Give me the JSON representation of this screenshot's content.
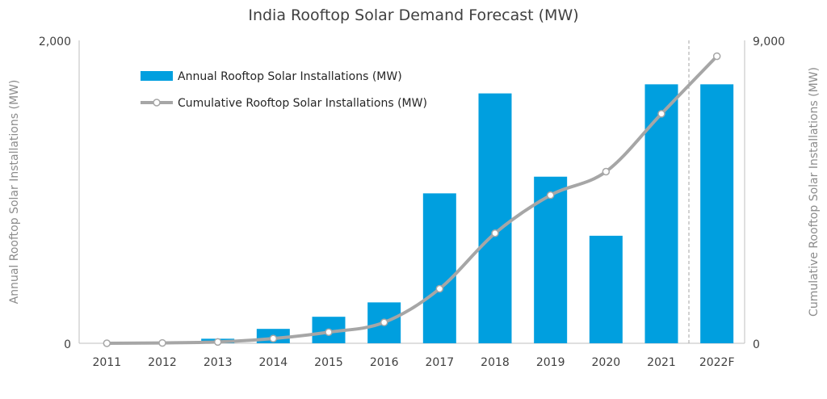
{
  "chart_data": {
    "type": "bar",
    "title": "India Rooftop Solar Demand Forecast (MW)",
    "categories": [
      "2011",
      "2012",
      "2013",
      "2014",
      "2015",
      "2016",
      "2017",
      "2018",
      "2019",
      "2020",
      "2021",
      "2022F"
    ],
    "ylabel": "Annual Rooftop Solar Installations (MW)",
    "y2label": "Cumulative Rooftop Solar Installations (MW)",
    "ylim": [
      0,
      2000
    ],
    "y2lim": [
      0,
      9000
    ],
    "yticks": [
      "0",
      "2,000"
    ],
    "y2ticks": [
      "0",
      "9,000"
    ],
    "grid": false,
    "legend_position": "top-left",
    "forecast_divider": "between 2021 and 2022F",
    "series": [
      {
        "name": "Annual Rooftop Solar Installations (MW)",
        "type": "bar",
        "axis": "left",
        "color": "#009fdf",
        "values": [
          0,
          0,
          30,
          95,
          175,
          270,
          990,
          1650,
          1100,
          710,
          1710,
          1710
        ]
      },
      {
        "name": "Cumulative Rooftop Solar Installations (MW)",
        "type": "line",
        "axis": "right",
        "color": "#a6a6a6",
        "values": [
          0,
          10,
          40,
          140,
          330,
          620,
          1620,
          3270,
          4400,
          5100,
          6820,
          8530
        ]
      }
    ]
  }
}
